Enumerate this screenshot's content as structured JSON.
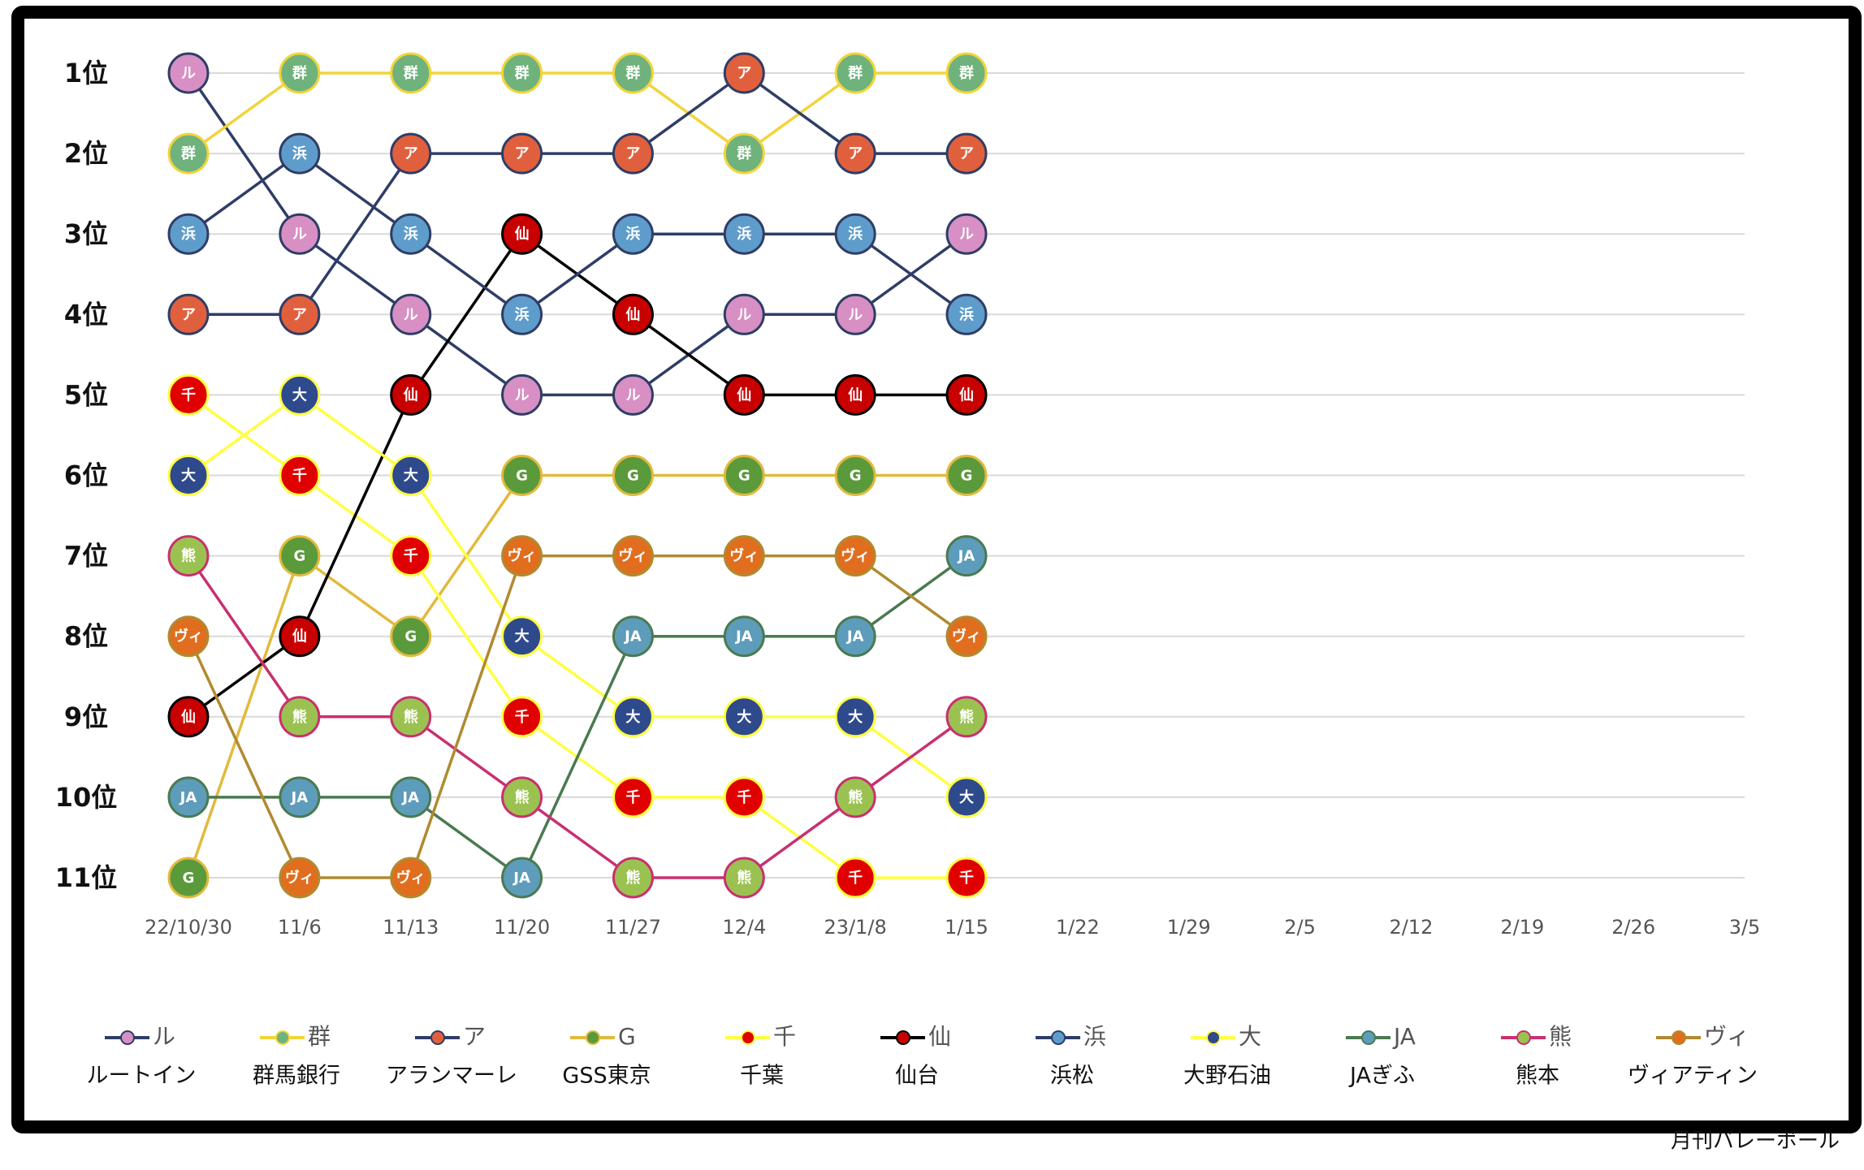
{
  "chart_data": {
    "type": "bump",
    "categories": [
      "22/10/30",
      "11/6",
      "11/13",
      "11/20",
      "11/27",
      "12/4",
      "23/1/8",
      "1/15",
      "1/22",
      "1/29",
      "2/5",
      "2/12",
      "2/19",
      "2/26",
      "3/5"
    ],
    "ylim": [
      11,
      1
    ],
    "yticks": [
      {
        "value": 1,
        "label": "1位"
      },
      {
        "value": 2,
        "label": "2位"
      },
      {
        "value": 3,
        "label": "3位"
      },
      {
        "value": 4,
        "label": "4位"
      },
      {
        "value": 5,
        "label": "5位"
      },
      {
        "value": 6,
        "label": "6位"
      },
      {
        "value": 7,
        "label": "7位"
      },
      {
        "value": 8,
        "label": "8位"
      },
      {
        "value": 9,
        "label": "9位"
      },
      {
        "value": 10,
        "label": "10位"
      },
      {
        "value": 11,
        "label": "11位"
      }
    ],
    "grid": true,
    "series": [
      {
        "name": "ルートイン",
        "label": "ル",
        "color": "#d78fc4",
        "line_color": "#2f3d66",
        "values": [
          1,
          3,
          4,
          5,
          5,
          4,
          4,
          3,
          null,
          null,
          null,
          null,
          null,
          null,
          null
        ]
      },
      {
        "name": "群馬銀行",
        "label": "群",
        "color": "#6fb27c",
        "line_color": "#f2d43a",
        "values": [
          2,
          1,
          1,
          1,
          1,
          2,
          1,
          1,
          null,
          null,
          null,
          null,
          null,
          null,
          null
        ]
      },
      {
        "name": "アランマーレ",
        "label": "ア",
        "color": "#e0603e",
        "line_color": "#2f3d66",
        "values": [
          4,
          4,
          2,
          2,
          2,
          1,
          2,
          2,
          null,
          null,
          null,
          null,
          null,
          null,
          null
        ]
      },
      {
        "name": "GSS東京",
        "label": "G",
        "color": "#5a9a3a",
        "line_color": "#e2b93c",
        "values": [
          11,
          7,
          8,
          6,
          6,
          6,
          6,
          6,
          null,
          null,
          null,
          null,
          null,
          null,
          null
        ]
      },
      {
        "name": "千葉",
        "label": "千",
        "color": "#e00000",
        "line_color": "#ffff44",
        "values": [
          5,
          6,
          7,
          9,
          10,
          10,
          11,
          11,
          null,
          null,
          null,
          null,
          null,
          null,
          null
        ]
      },
      {
        "name": "仙台",
        "label": "仙",
        "color": "#c80000",
        "line_color": "#000000",
        "values": [
          9,
          8,
          5,
          3,
          4,
          5,
          5,
          5,
          null,
          null,
          null,
          null,
          null,
          null,
          null
        ]
      },
      {
        "name": "浜松",
        "label": "浜",
        "color": "#5e9ccb",
        "line_color": "#2f3d66",
        "values": [
          3,
          2,
          3,
          4,
          3,
          3,
          3,
          4,
          null,
          null,
          null,
          null,
          null,
          null,
          null
        ]
      },
      {
        "name": "大野石油",
        "label": "大",
        "color": "#2e4a8c",
        "line_color": "#ffff44",
        "values": [
          6,
          5,
          6,
          8,
          9,
          9,
          9,
          10,
          null,
          null,
          null,
          null,
          null,
          null,
          null
        ]
      },
      {
        "name": "JAぎふ",
        "label": "JA",
        "color": "#5d9cba",
        "line_color": "#4a7a50",
        "values": [
          10,
          10,
          10,
          11,
          8,
          8,
          8,
          7,
          null,
          null,
          null,
          null,
          null,
          null,
          null
        ]
      },
      {
        "name": "熊本",
        "label": "熊",
        "color": "#9bc250",
        "line_color": "#c83070",
        "values": [
          7,
          9,
          9,
          10,
          11,
          11,
          10,
          9,
          null,
          null,
          null,
          null,
          null,
          null,
          null
        ]
      },
      {
        "name": "ヴィアティン",
        "label": "ヴィ",
        "color": "#e06e1e",
        "line_color": "#b08a30",
        "values": [
          8,
          11,
          11,
          7,
          7,
          7,
          7,
          8,
          null,
          null,
          null,
          null,
          null,
          null,
          null
        ]
      }
    ],
    "source": "月刊バレーボール"
  }
}
